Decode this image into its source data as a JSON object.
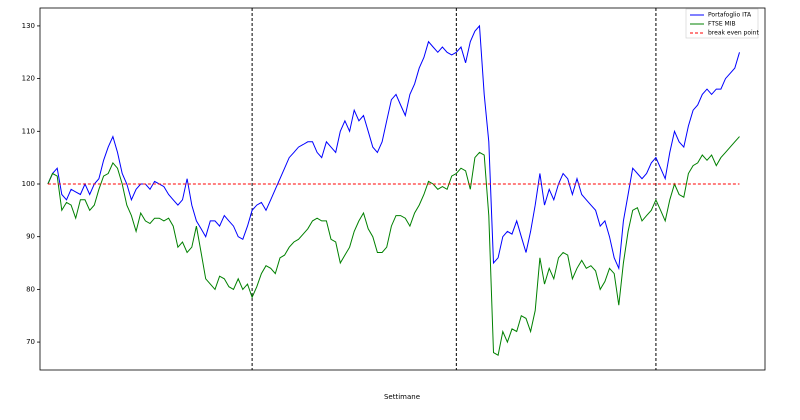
{
  "chart_data": {
    "type": "line",
    "x_label": "Settimane",
    "ylim": [
      64.7,
      133.4
    ],
    "yticks": [
      70,
      80,
      90,
      100,
      110,
      120,
      130
    ],
    "xlim": [
      -1.7,
      154.5
    ],
    "vlines": [
      44,
      88,
      131
    ],
    "vline_color": "#000000",
    "hlines": [
      {
        "name": "break even point",
        "color": "#ff0000",
        "value": 100
      }
    ],
    "legend": "upper-right",
    "series": [
      {
        "name": "Portafoglio ITA",
        "color": "#0000ff",
        "values": [
          100,
          102,
          103,
          98,
          97,
          99,
          98.5,
          98,
          100,
          98,
          100,
          101,
          104.5,
          107,
          109,
          106,
          102,
          100,
          97,
          99,
          100,
          100,
          99,
          100.5,
          100,
          99.5,
          98,
          97,
          96,
          97,
          101,
          96,
          93,
          91.5,
          90,
          93,
          93,
          92,
          94,
          93,
          92,
          90,
          89.5,
          92,
          95,
          96,
          96.5,
          95,
          97,
          99,
          101,
          103,
          105,
          106,
          107,
          107.5,
          108,
          108,
          106,
          105,
          108,
          107,
          106,
          110,
          112,
          110,
          114,
          112,
          113,
          110,
          107,
          106,
          108,
          112,
          116,
          117,
          115,
          113,
          117,
          119,
          122,
          124,
          127,
          126,
          125,
          126,
          125,
          124.5,
          125,
          126,
          123,
          127,
          129,
          130,
          117,
          108,
          85,
          86,
          90,
          91,
          90.5,
          93,
          90,
          87,
          91,
          96,
          102,
          96,
          99,
          97,
          100,
          102,
          101,
          98,
          101,
          98,
          97,
          96,
          95,
          92,
          93,
          90,
          86,
          84,
          93,
          98,
          103,
          102,
          101,
          102,
          104,
          105,
          103,
          101,
          106,
          110,
          108,
          107,
          111,
          114,
          115,
          117,
          118,
          117,
          118,
          118,
          120,
          121,
          122,
          125
        ]
      },
      {
        "name": "FTSE MIB",
        "color": "#008000",
        "values": [
          100,
          102,
          101.5,
          95,
          96.5,
          96,
          93.5,
          97,
          97,
          95,
          96,
          99,
          101.5,
          102,
          104,
          103,
          100,
          96,
          94,
          91,
          94.5,
          93,
          92.5,
          93.5,
          93.5,
          93,
          93.5,
          92,
          88,
          89,
          87,
          88,
          92,
          87,
          82,
          81,
          80,
          82.5,
          82,
          80.5,
          80,
          82,
          80,
          81,
          78.5,
          80.5,
          83,
          84.5,
          84,
          83,
          86,
          86.5,
          88,
          89,
          89.5,
          90.5,
          91.5,
          93,
          93.5,
          93,
          93,
          89.5,
          89,
          85,
          86.5,
          88,
          91,
          93,
          94.5,
          91.5,
          90,
          87,
          87,
          88,
          92,
          94,
          94,
          93.5,
          92,
          94.5,
          96,
          98,
          100.5,
          100,
          99,
          99.5,
          99,
          101.5,
          102,
          103,
          102.5,
          99,
          105,
          106,
          105.5,
          94,
          68,
          67.5,
          72,
          70,
          72.5,
          72,
          75,
          74.5,
          72,
          76,
          86,
          81,
          84,
          82,
          86,
          87,
          86.5,
          82,
          84,
          85.5,
          84,
          84.5,
          83.5,
          80,
          81.5,
          84,
          83,
          77,
          85,
          91,
          95,
          95.5,
          93,
          94,
          95,
          97,
          95,
          93,
          97,
          100,
          98,
          97.5,
          102,
          103.5,
          104,
          105.5,
          104.5,
          105.5,
          103.5,
          105,
          106,
          107,
          108,
          109
        ]
      }
    ]
  }
}
